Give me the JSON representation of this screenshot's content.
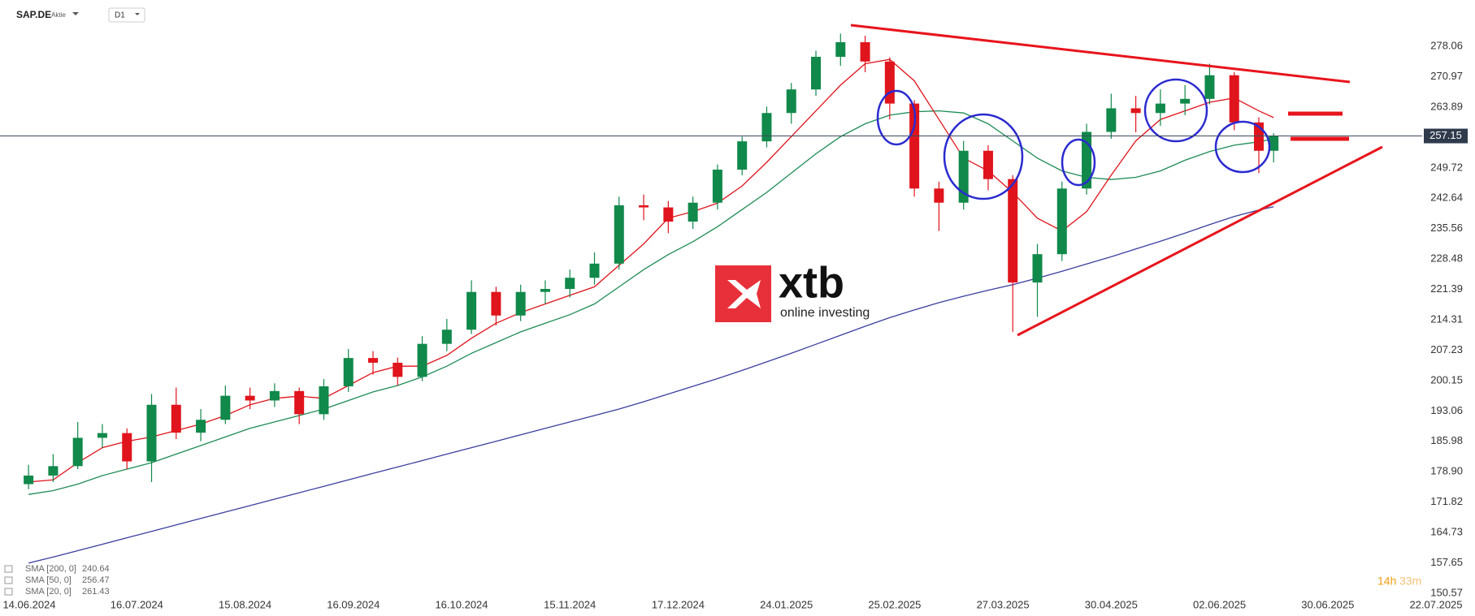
{
  "chart_data": {
    "type": "candlestick",
    "symbol": "SAP.DE",
    "instrument_type": "Aktie",
    "timeframe": "D1",
    "countdown_hours": "14h",
    "countdown_minutes": "33m",
    "watermark": {
      "brand": "xtb",
      "tagline": "online investing"
    },
    "up_color": "#10894a",
    "down_color": "#e0141c",
    "last_price": 257.15,
    "xlim": [
      -5.8,
      286
    ],
    "ylim": [
      149.81,
      288.84
    ],
    "xticks": [
      {
        "value": 0,
        "label": "14.06.2024"
      },
      {
        "value": 22,
        "label": "16.07.2024"
      },
      {
        "value": 44,
        "label": "15.08.2024"
      },
      {
        "value": 66,
        "label": "16.09.2024"
      },
      {
        "value": 88,
        "label": "16.10.2024"
      },
      {
        "value": 110,
        "label": "15.11.2024"
      },
      {
        "value": 132,
        "label": "17.12.2024"
      },
      {
        "value": 154,
        "label": "24.01.2025"
      },
      {
        "value": 176,
        "label": "25.02.2025"
      },
      {
        "value": 198,
        "label": "27.03.2025"
      },
      {
        "value": 220,
        "label": "30.04.2025"
      },
      {
        "value": 242,
        "label": "02.06.2025"
      },
      {
        "value": 264,
        "label": "30.06.2025"
      },
      {
        "value": 286,
        "label": "22.07.2025"
      }
    ],
    "yticks": [
      278.06,
      270.97,
      263.89,
      249.72,
      242.64,
      235.56,
      228.48,
      221.39,
      214.31,
      207.23,
      200.15,
      193.06,
      185.98,
      {
        "value": 178.9,
        "label": "178.90"
      },
      171.82,
      164.73,
      157.65,
      150.57
    ],
    "candles": {
      "x": [
        0,
        5,
        10,
        15,
        20,
        25,
        30,
        35,
        40,
        45,
        50,
        55,
        60,
        65,
        70,
        75,
        80,
        85,
        90,
        95,
        100,
        105,
        110,
        115,
        120,
        125,
        130,
        135,
        140,
        145,
        150,
        155,
        160,
        165,
        170,
        175,
        180,
        185,
        190,
        195,
        200,
        205,
        210,
        215,
        220,
        225,
        230,
        235,
        240,
        245,
        250,
        253
      ],
      "open": [
        176,
        178,
        180.2,
        186.8,
        187.9,
        181.3,
        194.5,
        188,
        191,
        196.6,
        195.5,
        197.7,
        192.3,
        198.8,
        205.4,
        204.3,
        201,
        208.7,
        212,
        220.8,
        215.3,
        220.8,
        221.5,
        224.1,
        227.4,
        241,
        240.5,
        237.2,
        241.6,
        249.3,
        255.9,
        262.5,
        268,
        275.6,
        279,
        274.5,
        264.7,
        244.9,
        241.6,
        253.7,
        247.1,
        223,
        229.6,
        244.9,
        258.1,
        263.6,
        262.5,
        264.7,
        265.8,
        271.3,
        260.3,
        253.7
      ],
      "high": [
        180.5,
        183,
        190.5,
        190,
        189,
        197,
        198.5,
        193.5,
        199,
        198.5,
        199.5,
        198.5,
        200.5,
        207.5,
        207,
        205.5,
        210.5,
        214.5,
        223.5,
        222,
        222.5,
        223.5,
        226,
        230,
        243,
        243.5,
        242,
        243,
        250.5,
        257,
        264,
        269.5,
        277,
        281,
        280.5,
        275.5,
        265.5,
        246.5,
        256,
        255,
        248,
        232,
        246.5,
        260,
        267,
        266.5,
        268,
        269,
        274,
        272,
        261.5,
        257.8
      ],
      "low": [
        174.8,
        176.5,
        179.5,
        184.5,
        179.5,
        176.5,
        186.5,
        186,
        190,
        193.5,
        194,
        190,
        191,
        197.5,
        201.5,
        199,
        200,
        207,
        211,
        213,
        214,
        218,
        219.5,
        222.5,
        226,
        237.5,
        234.5,
        235.5,
        240,
        248,
        254.5,
        260,
        266.5,
        273.5,
        272,
        261,
        243,
        235,
        240,
        244.5,
        211.5,
        215,
        228,
        243.5,
        256.5,
        258,
        259.5,
        262,
        264.5,
        258.5,
        248.5,
        251
      ],
      "close": [
        178,
        180.2,
        186.8,
        187.9,
        181.3,
        194.5,
        188,
        191,
        196.6,
        195.5,
        197.7,
        192.3,
        198.8,
        205.4,
        204.3,
        201,
        208.7,
        212,
        220.8,
        215.3,
        220.8,
        221.5,
        224.1,
        227.4,
        241,
        240.5,
        237.2,
        241.6,
        249.3,
        255.9,
        262.5,
        268,
        275.6,
        279,
        274.5,
        264.7,
        244.9,
        241.6,
        253.7,
        247.1,
        223,
        229.6,
        244.9,
        258.1,
        263.6,
        262.5,
        264.7,
        265.8,
        271.3,
        260.3,
        253.7,
        257.15
      ]
    },
    "indicators": [
      {
        "name": "SMA [200, 0]",
        "color": "#3a3f9e",
        "last": 240.64,
        "values": [
          157.6,
          159,
          160.5,
          162,
          163.5,
          165,
          166.5,
          168,
          169.5,
          171,
          172.5,
          174,
          175.5,
          177,
          178.5,
          180,
          181.5,
          183,
          184.5,
          186,
          187.5,
          189,
          190.5,
          192,
          193.5,
          195.2,
          197,
          198.8,
          200.6,
          202.5,
          204.5,
          206.5,
          208.6,
          210.7,
          212.8,
          214.8,
          216.6,
          218.3,
          219.8,
          221.2,
          222.5,
          224,
          225.6,
          227.3,
          229,
          230.8,
          232.6,
          234.5,
          236.5,
          238.4,
          239.9,
          240.64
        ]
      },
      {
        "name": "SMA [50, 0]",
        "color": "#1e8c55",
        "last": 256.47,
        "values": [
          173.6,
          174.5,
          176,
          178,
          179.5,
          181,
          183,
          185,
          187,
          189,
          190.5,
          192,
          193.5,
          195.5,
          197.5,
          199,
          201,
          203.5,
          206.5,
          209,
          211.5,
          213.5,
          215.5,
          218,
          222,
          226,
          229.5,
          232.5,
          236,
          240,
          244,
          248.5,
          253,
          257,
          260,
          262,
          262.8,
          263,
          262.5,
          260,
          256,
          252,
          249,
          247.5,
          247,
          247.5,
          249,
          251.5,
          253.5,
          255,
          255.8,
          256.47
        ]
      },
      {
        "name": "SMA [20, 0]",
        "color": "#e0141c",
        "last": 261.43,
        "values": [
          176.5,
          177,
          181,
          184.5,
          186,
          187,
          188.5,
          190,
          192,
          194.5,
          196,
          196.5,
          196,
          199,
          202,
          203.5,
          203.5,
          206,
          210,
          213.5,
          216,
          218,
          220,
          222,
          227,
          232,
          238,
          239.5,
          241.5,
          245.5,
          251,
          257,
          263,
          269,
          274,
          275,
          270,
          261,
          252,
          249,
          244,
          238,
          235,
          239.5,
          248,
          256,
          261,
          263,
          265,
          266,
          263,
          261.43
        ]
      }
    ]
  }
}
